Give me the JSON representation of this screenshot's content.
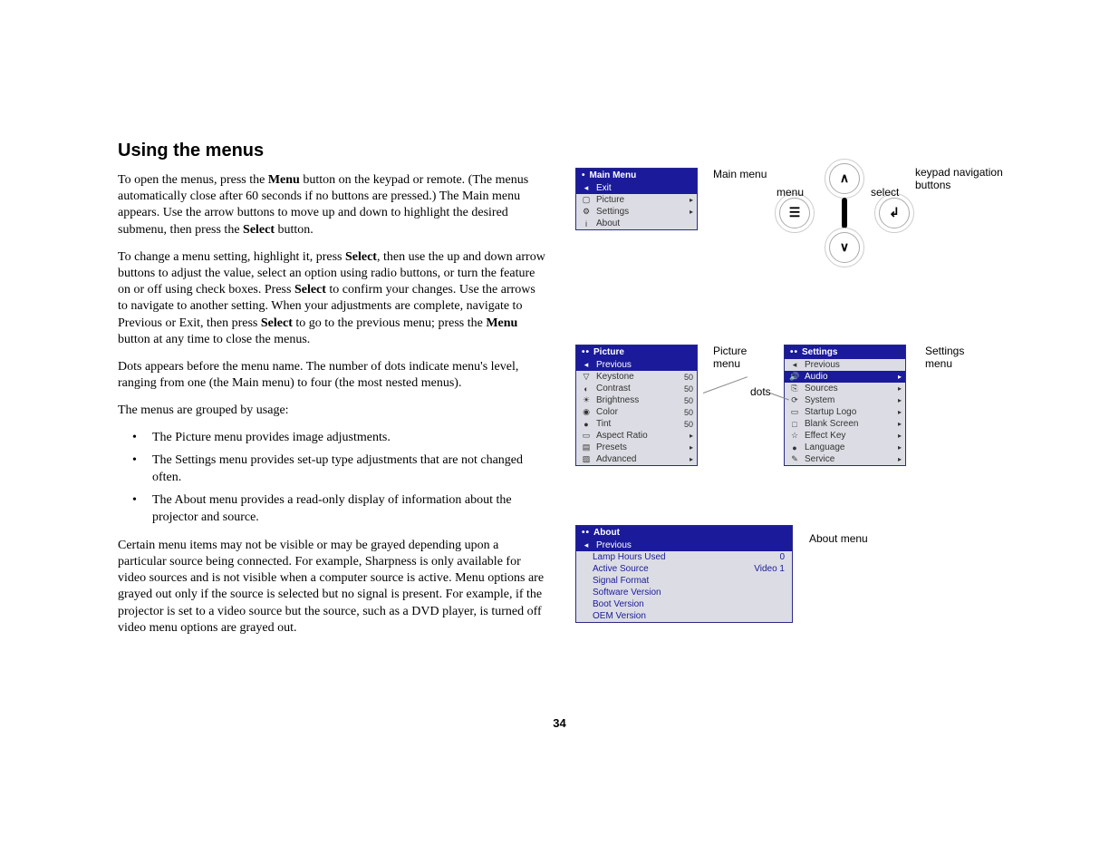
{
  "heading": "Using the menus",
  "page_number": "34",
  "paragraphs": {
    "p1_pre": "To open the menus, press the ",
    "p1_b1": "Menu",
    "p1_mid": " button on the keypad or remote. (The menus automatically close after 60 seconds if no buttons are pressed.) The Main menu appears. Use the arrow buttons to move up and down to highlight the desired submenu, then press the ",
    "p1_b2": "Select",
    "p1_post": " button.",
    "p2_pre": "To change a menu setting, highlight it, press ",
    "p2_b1": "Select",
    "p2_mid1": ", then use the up and down arrow buttons to adjust the value, select an option using radio buttons, or turn the feature on or off using check boxes. Press ",
    "p2_b2": "Select",
    "p2_mid2": " to confirm your changes. Use the arrows to navigate to another setting. When your adjustments are complete, navigate to Previous or Exit, then press ",
    "p2_b3": "Select",
    "p2_mid3": " to go to the previous menu; press the ",
    "p2_b4": "Menu",
    "p2_post": " button at any time to close the menus.",
    "p3": "Dots appears before the menu name. The number of dots indicate menu's level, ranging from one (the Main menu) to four (the most nested menus).",
    "p4": "The menus are grouped by usage:",
    "b1": "The Picture menu provides image adjustments.",
    "b2": "The Settings menu provides set-up type adjustments that are not changed often.",
    "b3": "The About menu provides a read-only display of information about the projector and source.",
    "p5": "Certain menu items may not be visible or may be grayed depending upon a particular source being connected. For example, Sharpness is only available for video sources and is not visible when a computer source is active. Menu options are grayed out only if the source is selected but no signal is present. For example, if the projector is set to a video source but the source, such as a DVD player, is turned off video menu options are grayed out."
  },
  "main_menu": {
    "title": "Main Menu",
    "dots": "•",
    "items": [
      {
        "icon": "◂",
        "label": "Exit",
        "sel": true
      },
      {
        "icon": "▢",
        "label": "Picture",
        "arrow": "▸"
      },
      {
        "icon": "⚙",
        "label": "Settings",
        "arrow": "▸"
      },
      {
        "icon": "i",
        "label": "About"
      }
    ]
  },
  "picture_menu": {
    "title": "Picture",
    "dots": "••",
    "items": [
      {
        "icon": "◂",
        "label": "Previous",
        "sel": true
      },
      {
        "icon": "▽",
        "label": "Keystone",
        "val": "50"
      },
      {
        "icon": "◐",
        "label": "Contrast",
        "val": "50"
      },
      {
        "icon": "☀",
        "label": "Brightness",
        "val": "50"
      },
      {
        "icon": "◉",
        "label": "Color",
        "val": "50"
      },
      {
        "icon": "●",
        "label": "Tint",
        "val": "50"
      },
      {
        "icon": "▭",
        "label": "Aspect Ratio",
        "arrow": "▸"
      },
      {
        "icon": "▤",
        "label": "Presets",
        "arrow": "▸"
      },
      {
        "icon": "▨",
        "label": "Advanced",
        "arrow": "▸"
      }
    ]
  },
  "settings_menu": {
    "title": "Settings",
    "dots": "••",
    "items": [
      {
        "icon": "◂",
        "label": "Previous"
      },
      {
        "icon": "🔊",
        "label": "Audio",
        "sel": true,
        "arrow": "▸"
      },
      {
        "icon": "⎘",
        "label": "Sources",
        "arrow": "▸"
      },
      {
        "icon": "⟳",
        "label": "System",
        "arrow": "▸"
      },
      {
        "icon": "▭",
        "label": "Startup Logo",
        "arrow": "▸"
      },
      {
        "icon": "□",
        "label": "Blank Screen",
        "arrow": "▸"
      },
      {
        "icon": "☆",
        "label": "Effect Key",
        "arrow": "▸"
      },
      {
        "icon": "●",
        "label": "Language",
        "arrow": "▸"
      },
      {
        "icon": "✎",
        "label": "Service",
        "arrow": "▸"
      }
    ]
  },
  "about_menu": {
    "title": "About",
    "dots": "••",
    "prev": "Previous",
    "items": [
      {
        "label": "Lamp Hours Used",
        "val": "0"
      },
      {
        "label": "Active Source",
        "val": "Video 1"
      },
      {
        "label": "Signal Format",
        "val": ""
      },
      {
        "label": "Software Version",
        "val": ""
      },
      {
        "label": "Boot Version",
        "val": ""
      },
      {
        "label": "OEM Version",
        "val": ""
      }
    ]
  },
  "annot": {
    "main": "Main menu",
    "keypad": "keypad navigation buttons",
    "menu_btn": "menu",
    "select_btn": "select",
    "picture": "Picture menu",
    "dots": "dots",
    "settings": "Settings menu",
    "about": "About menu"
  },
  "keypad": {
    "menu_glyph": "☰",
    "up_glyph": "∧",
    "down_glyph": "∨",
    "select_glyph": "↲"
  }
}
